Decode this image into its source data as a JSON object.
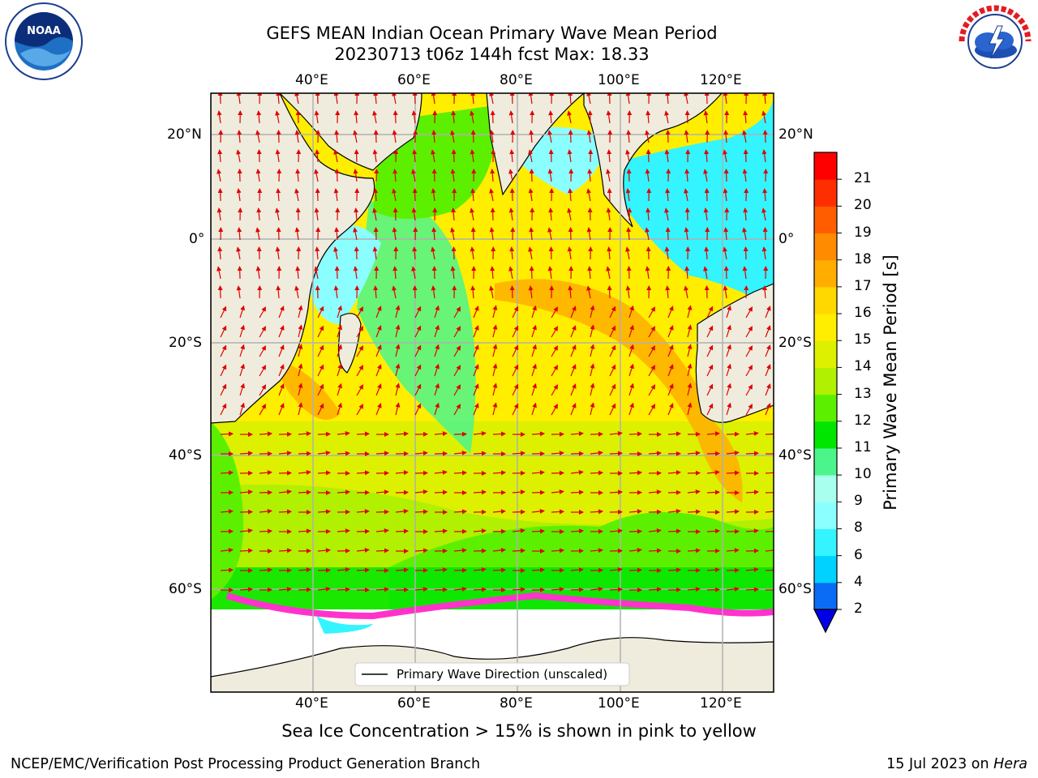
{
  "title": {
    "line1": "GEFS MEAN Indian Ocean Primary Wave Mean Period",
    "line2": "20230713 t06z 144h fcst   Max: 18.33"
  },
  "logos": {
    "left": {
      "name": "noaa-logo",
      "text": "NOAA",
      "ring_text": "NATIONAL OCEANIC AND ATMOSPHERIC ADMINISTRATION · U.S. DEPARTMENT OF COMMERCE"
    },
    "right": {
      "name": "nws-logo",
      "ring_text": "NATIONAL WEATHER SERVICE"
    }
  },
  "map": {
    "lon_range": [
      20,
      130
    ],
    "lat_range": [
      -70,
      28
    ],
    "lon_ticks": [
      "40°E",
      "60°E",
      "80°E",
      "100°E",
      "120°E"
    ],
    "lat_ticks": [
      "20°N",
      "0°",
      "20°S",
      "40°S",
      "60°S"
    ],
    "grid": true,
    "legend": {
      "label": "Primary Wave Direction (unscaled)",
      "placement": "bottom-center"
    },
    "land_color": "#efecdd",
    "arrow_color": "#e00000",
    "ice_color": "#ff33cc"
  },
  "colorbar": {
    "label": "Primary Wave Mean Period [s]",
    "tick_labels": [
      "2",
      "4",
      "6",
      "8",
      "9",
      "10",
      "11",
      "12",
      "13",
      "14",
      "15",
      "16",
      "17",
      "18",
      "19",
      "20",
      "21"
    ],
    "colors": [
      "#0a6cf5",
      "#00d2ff",
      "#33f4ff",
      "#8bffff",
      "#a9ffee",
      "#4cf58c",
      "#00e600",
      "#5cf000",
      "#b0f000",
      "#dcf000",
      "#ffee00",
      "#ffd800",
      "#ffae00",
      "#ff8b00",
      "#ff5d00",
      "#ff2e00",
      "#ff0000"
    ],
    "extend_color": "#0000e6"
  },
  "caption": "Sea Ice Concentration > 15% is shown in pink to yellow",
  "footer": {
    "left": "NCEP/EMC/Verification Post Processing Product Generation Branch",
    "date": "15 Jul 2023 on ",
    "machine": "Hera"
  }
}
